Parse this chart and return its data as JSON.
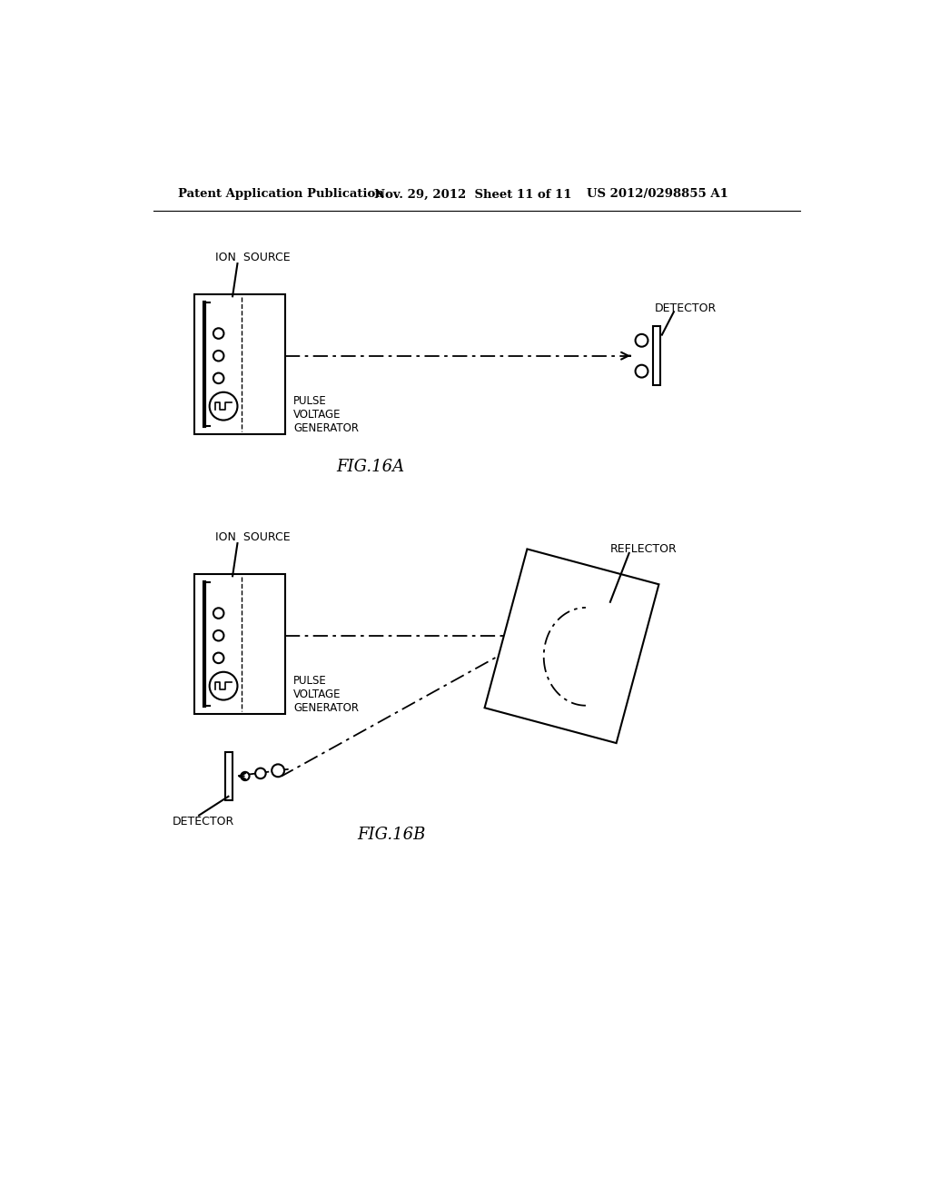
{
  "bg_color": "#ffffff",
  "line_color": "#000000",
  "header_text": "Patent Application Publication",
  "header_date": "Nov. 29, 2012  Sheet 11 of 11",
  "header_patent": "US 2012/0298855 A1",
  "fig_label_a": "FIG.16A",
  "fig_label_b": "FIG.16B",
  "ion_source_label_a": "ION  SOURCE",
  "ion_source_label_b": "ION  SOURCE",
  "detector_label_a": "DETECTOR",
  "detector_label_b": "DETECTOR",
  "pulse_label_a": "PULSE\nVOLTAGE\nGENERATOR",
  "pulse_label_b": "PULSE\nVOLTAGE\nGENERATOR",
  "reflector_label": "REFLECTOR"
}
